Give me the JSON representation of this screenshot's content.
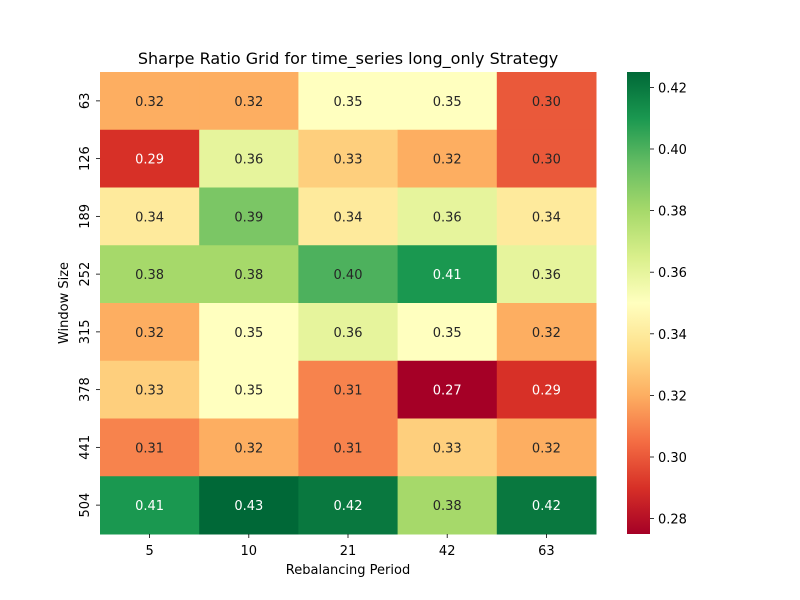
{
  "chart_data": {
    "type": "heatmap",
    "title": "Sharpe Ratio Grid for time_series long_only Strategy",
    "xlabel": "Rebalancing Period",
    "ylabel": "Window Size",
    "x_categories": [
      "5",
      "10",
      "21",
      "42",
      "63"
    ],
    "y_categories": [
      "63",
      "126",
      "189",
      "252",
      "315",
      "378",
      "441",
      "504"
    ],
    "values": [
      [
        0.32,
        0.32,
        0.35,
        0.35,
        0.3
      ],
      [
        0.29,
        0.36,
        0.33,
        0.32,
        0.3
      ],
      [
        0.34,
        0.39,
        0.34,
        0.36,
        0.34
      ],
      [
        0.38,
        0.38,
        0.4,
        0.41,
        0.36
      ],
      [
        0.32,
        0.35,
        0.36,
        0.35,
        0.32
      ],
      [
        0.33,
        0.35,
        0.31,
        0.27,
        0.29
      ],
      [
        0.31,
        0.32,
        0.31,
        0.33,
        0.32
      ],
      [
        0.41,
        0.43,
        0.42,
        0.38,
        0.42
      ]
    ],
    "value_format": "0.00",
    "colormap": "RdYlGn",
    "colorbar": {
      "range": [
        0.275,
        0.425
      ],
      "ticks": [
        0.28,
        0.3,
        0.32,
        0.34,
        0.36,
        0.38,
        0.4,
        0.42
      ],
      "tick_labels": [
        "0.28",
        "0.30",
        "0.32",
        "0.34",
        "0.36",
        "0.38",
        "0.40",
        "0.42"
      ],
      "position": "right"
    },
    "colors": {
      "low": "#a50026",
      "mid": "#ffffbf",
      "high": "#006837"
    }
  }
}
